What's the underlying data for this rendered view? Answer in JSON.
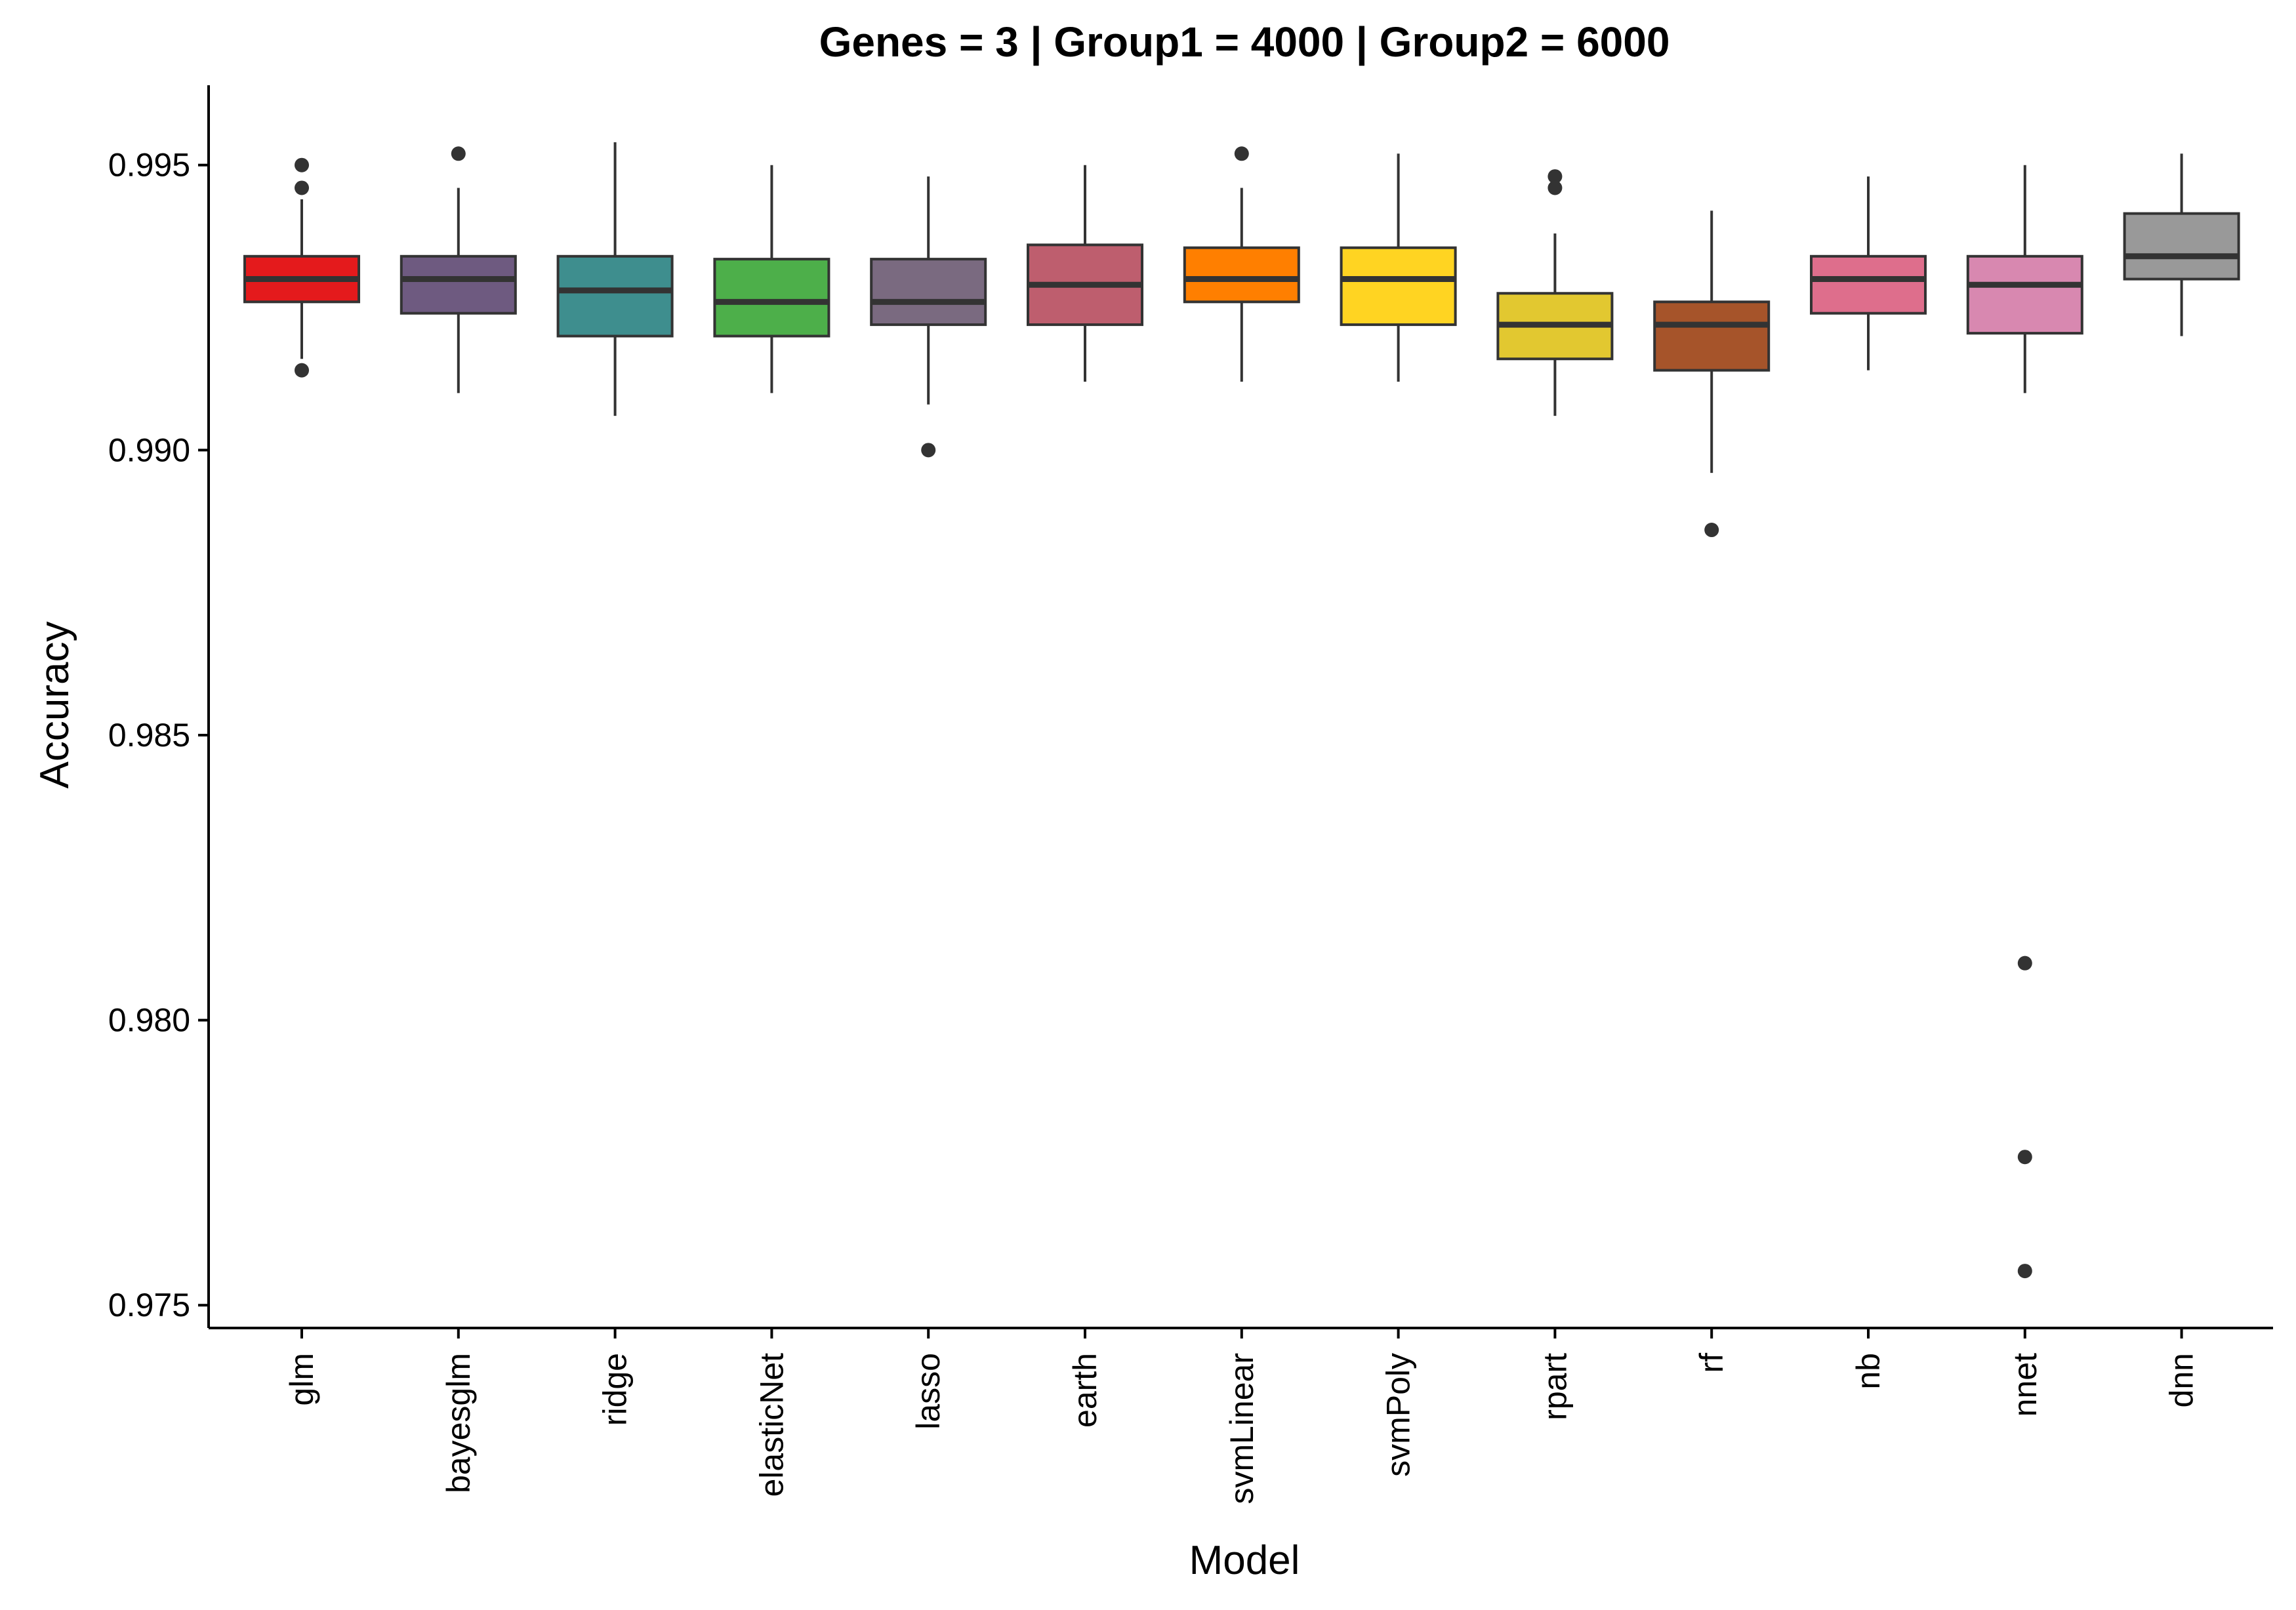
{
  "chart_data": {
    "type": "boxplot",
    "title": "Genes = 3 | Group1 = 4000 | Group2 = 6000",
    "xlabel": "Model",
    "ylabel": "Accuracy",
    "ylim": [
      0.9746,
      0.9964
    ],
    "yticks": [
      0.975,
      0.98,
      0.985,
      0.99,
      0.995
    ],
    "ytick_labels": [
      "0.975",
      "0.980",
      "0.985",
      "0.990",
      "0.995"
    ],
    "grid": false,
    "legend": "none",
    "categories": [
      "glm",
      "bayesglm",
      "ridge",
      "elasticNet",
      "lasso",
      "earth",
      "svmLinear",
      "svmPoly",
      "rpart",
      "rf",
      "nb",
      "nnet",
      "dnn"
    ],
    "boxes": [
      {
        "name": "glm",
        "color": "#E41A1C",
        "whisker_low": 0.9916,
        "q1": 0.9926,
        "median": 0.993,
        "q3": 0.9934,
        "whisker_high": 0.9944,
        "outliers": [
          0.995,
          0.9946,
          0.9914
        ]
      },
      {
        "name": "bayesglm",
        "color": "#6E5A80",
        "whisker_low": 0.991,
        "q1": 0.9924,
        "median": 0.993,
        "q3": 0.9934,
        "whisker_high": 0.9946,
        "outliers": [
          0.9952
        ]
      },
      {
        "name": "ridge",
        "color": "#3E8E8E",
        "whisker_low": 0.9906,
        "q1": 0.992,
        "median": 0.9928,
        "q3": 0.9934,
        "whisker_high": 0.9954,
        "outliers": []
      },
      {
        "name": "elasticNet",
        "color": "#4DAF4A",
        "whisker_low": 0.991,
        "q1": 0.992,
        "median": 0.9926,
        "q3": 0.99335,
        "whisker_high": 0.995,
        "outliers": []
      },
      {
        "name": "lasso",
        "color": "#7A6A80",
        "whisker_low": 0.9908,
        "q1": 0.9922,
        "median": 0.9926,
        "q3": 0.99335,
        "whisker_high": 0.9948,
        "outliers": [
          0.99
        ]
      },
      {
        "name": "earth",
        "color": "#BE5E6E",
        "whisker_low": 0.9912,
        "q1": 0.9922,
        "median": 0.9929,
        "q3": 0.9936,
        "whisker_high": 0.995,
        "outliers": []
      },
      {
        "name": "svmLinear",
        "color": "#FF7F00",
        "whisker_low": 0.9912,
        "q1": 0.9926,
        "median": 0.993,
        "q3": 0.99355,
        "whisker_high": 0.9946,
        "outliers": [
          0.9952
        ]
      },
      {
        "name": "svmPoly",
        "color": "#FFD422",
        "whisker_low": 0.9912,
        "q1": 0.9922,
        "median": 0.993,
        "q3": 0.99355,
        "whisker_high": 0.9952,
        "outliers": []
      },
      {
        "name": "rpart",
        "color": "#E2C830",
        "whisker_low": 0.9906,
        "q1": 0.9916,
        "median": 0.9922,
        "q3": 0.99275,
        "whisker_high": 0.9938,
        "outliers": [
          0.9948,
          0.9946
        ]
      },
      {
        "name": "rf",
        "color": "#A6542A",
        "whisker_low": 0.9896,
        "q1": 0.9914,
        "median": 0.9922,
        "q3": 0.9926,
        "whisker_high": 0.9942,
        "outliers": [
          0.9886
        ]
      },
      {
        "name": "nb",
        "color": "#DE6E8C",
        "whisker_low": 0.9914,
        "q1": 0.9924,
        "median": 0.993,
        "q3": 0.9934,
        "whisker_high": 0.9948,
        "outliers": []
      },
      {
        "name": "nnet",
        "color": "#D888B0",
        "whisker_low": 0.991,
        "q1": 0.99205,
        "median": 0.9929,
        "q3": 0.9934,
        "whisker_high": 0.995,
        "outliers": [
          0.981,
          0.9776,
          0.9756
        ]
      },
      {
        "name": "dnn",
        "color": "#999999",
        "whisker_low": 0.992,
        "q1": 0.993,
        "median": 0.9934,
        "q3": 0.99415,
        "whisker_high": 0.9952,
        "outliers": []
      }
    ]
  }
}
